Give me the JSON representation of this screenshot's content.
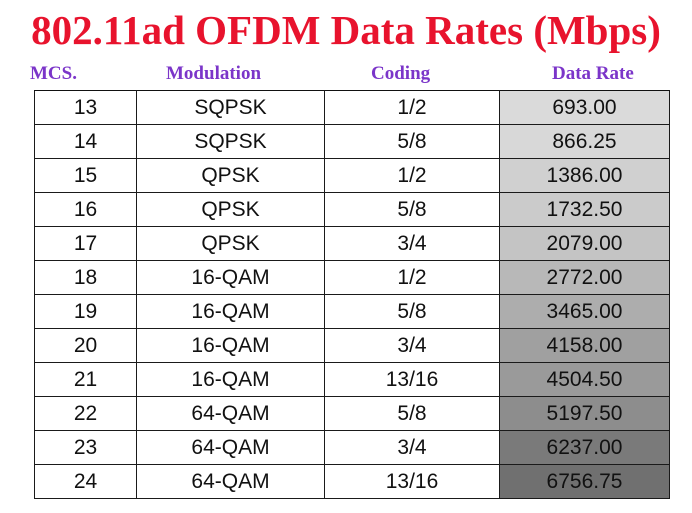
{
  "title": "802.11ad OFDM Data Rates (Mbps)",
  "headers": {
    "mcs": "MCS.",
    "modulation": "Modulation",
    "coding": "Coding",
    "data_rate": "Data Rate"
  },
  "colors": {
    "title": "#e8132d",
    "headers": "#7b35c9"
  },
  "rows": [
    {
      "mcs": "13",
      "modulation": "SQPSK",
      "coding": "1/2",
      "rate": "693.00",
      "shade": "#dadada"
    },
    {
      "mcs": "14",
      "modulation": "SQPSK",
      "coding": "5/8",
      "rate": "866.25",
      "shade": "#d8d8d8"
    },
    {
      "mcs": "15",
      "modulation": "QPSK",
      "coding": "1/2",
      "rate": "1386.00",
      "shade": "#d0d0d0"
    },
    {
      "mcs": "16",
      "modulation": "QPSK",
      "coding": "5/8",
      "rate": "1732.50",
      "shade": "#cbcbcb"
    },
    {
      "mcs": "17",
      "modulation": "QPSK",
      "coding": "3/4",
      "rate": "2079.00",
      "shade": "#c4c4c4"
    },
    {
      "mcs": "18",
      "modulation": "16-QAM",
      "coding": "1/2",
      "rate": "2772.00",
      "shade": "#b8b8b8"
    },
    {
      "mcs": "19",
      "modulation": "16-QAM",
      "coding": "5/8",
      "rate": "3465.00",
      "shade": "#adadad"
    },
    {
      "mcs": "20",
      "modulation": "16-QAM",
      "coding": "3/4",
      "rate": "4158.00",
      "shade": "#a0a0a0"
    },
    {
      "mcs": "21",
      "modulation": "16-QAM",
      "coding": "13/16",
      "rate": "4504.50",
      "shade": "#9a9a9a"
    },
    {
      "mcs": "22",
      "modulation": "64-QAM",
      "coding": "5/8",
      "rate": "5197.50",
      "shade": "#8d8d8d"
    },
    {
      "mcs": "23",
      "modulation": "64-QAM",
      "coding": "3/4",
      "rate": "6237.00",
      "shade": "#7a7a7a"
    },
    {
      "mcs": "24",
      "modulation": "64-QAM",
      "coding": "13/16",
      "rate": "6756.75",
      "shade": "#707070"
    }
  ]
}
